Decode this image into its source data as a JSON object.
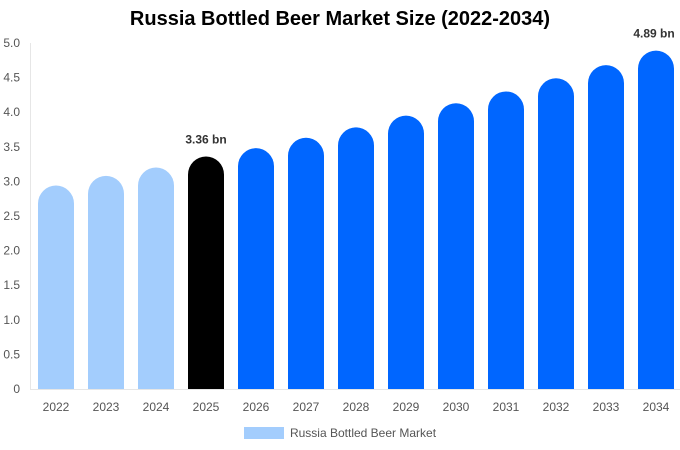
{
  "chart_data": {
    "type": "bar",
    "title": "Russia Bottled Beer Market Size (2022-2034)",
    "categories": [
      "2022",
      "2023",
      "2024",
      "2025",
      "2026",
      "2027",
      "2028",
      "2029",
      "2030",
      "2031",
      "2032",
      "2033",
      "2034"
    ],
    "series": [
      {
        "name": "Russia Bottled Beer Market",
        "values": [
          2.94,
          3.08,
          3.2,
          3.36,
          3.48,
          3.63,
          3.78,
          3.95,
          4.13,
          4.3,
          4.49,
          4.68,
          4.89
        ]
      }
    ],
    "data_labels": {
      "2025": "3.36 bn",
      "2034": "4.89 bn"
    },
    "ylim": [
      0,
      5.0
    ],
    "yticks": [
      "0",
      "0.5",
      "1.0",
      "1.5",
      "2.0",
      "2.5",
      "3.0",
      "3.5",
      "4.0",
      "4.5",
      "5.0"
    ],
    "xlabel": "",
    "ylabel": "",
    "grid": false,
    "legend": "bottom",
    "colors": {
      "historical": "#a3cdfd",
      "current": "#000000",
      "forecast": "#0066ff"
    }
  }
}
